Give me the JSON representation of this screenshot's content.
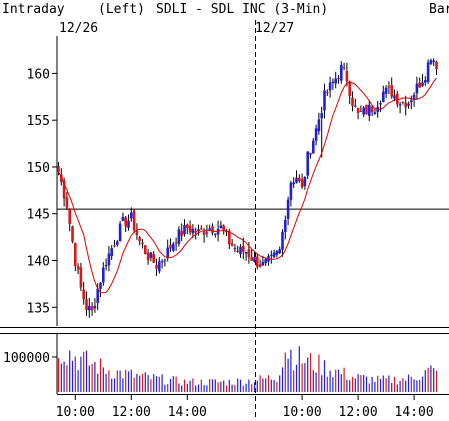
{
  "header": {
    "label_intraday": "Intraday",
    "label_left": "(Left)",
    "title": "SDLI - SDL INC  (3-Min)",
    "label_bar": "Bar",
    "date_labels": [
      "12/26",
      "12/27"
    ]
  },
  "chart_data": {
    "type": "candlestick",
    "title": "SDLI - SDL INC  (3-Min)",
    "interval": "3-Min",
    "days": [
      "12/26",
      "12/27"
    ],
    "price_axis": {
      "ticks": [
        135,
        140,
        145,
        150,
        155,
        160
      ],
      "range": [
        133,
        164
      ]
    },
    "volume_axis": {
      "ticks": [
        100000
      ],
      "tick_labels": [
        "100000"
      ],
      "range": [
        0,
        160000
      ]
    },
    "time_axis": {
      "tick_labels": [
        "10:00",
        "12:00",
        "14:00",
        "10:00",
        "12:00",
        "14:00"
      ]
    },
    "reference_line": 145.5,
    "moving_average": "red",
    "colors": {
      "up": "#2020d8",
      "down": "#d81818",
      "ma": "#e00000",
      "wick": "#000000"
    },
    "price_path": [
      [
        0,
        149.5
      ],
      [
        3,
        146
      ],
      [
        6,
        140
      ],
      [
        8,
        137
      ],
      [
        10,
        135
      ],
      [
        12,
        134.5
      ],
      [
        14,
        137
      ],
      [
        17,
        140
      ],
      [
        20,
        142
      ],
      [
        23,
        144
      ],
      [
        26,
        144.5
      ],
      [
        29,
        142
      ],
      [
        32,
        140.5
      ],
      [
        35,
        139.5
      ],
      [
        38,
        140.5
      ],
      [
        42,
        142.5
      ],
      [
        46,
        143.5
      ],
      [
        50,
        143
      ],
      [
        54,
        143.5
      ],
      [
        58,
        143.5
      ],
      [
        61,
        142
      ],
      [
        64,
        141
      ],
      [
        67,
        141
      ],
      [
        70,
        140
      ],
      [
        73,
        139.5
      ],
      [
        76,
        140
      ],
      [
        79,
        141
      ],
      [
        81,
        145
      ],
      [
        83,
        148.5
      ],
      [
        85,
        149
      ],
      [
        87,
        147.5
      ],
      [
        89,
        151
      ],
      [
        92,
        154
      ],
      [
        95,
        157.5
      ],
      [
        98,
        159
      ],
      [
        101,
        160.5
      ],
      [
        103,
        159.5
      ],
      [
        105,
        157
      ],
      [
        107,
        155.5
      ],
      [
        110,
        156
      ],
      [
        113,
        156.5
      ],
      [
        116,
        158
      ],
      [
        119,
        158
      ],
      [
        122,
        157
      ],
      [
        125,
        157
      ],
      [
        128,
        158.5
      ],
      [
        131,
        160
      ],
      [
        133,
        162
      ],
      [
        135,
        161
      ]
    ],
    "volume_profile": [
      [
        0,
        140000
      ],
      [
        5,
        110000
      ],
      [
        10,
        90000
      ],
      [
        20,
        60000
      ],
      [
        30,
        45000
      ],
      [
        45,
        30000
      ],
      [
        60,
        30000
      ],
      [
        70,
        35000
      ],
      [
        78,
        45000
      ],
      [
        81,
        130000
      ],
      [
        86,
        100000
      ],
      [
        95,
        75000
      ],
      [
        105,
        45000
      ],
      [
        115,
        35000
      ],
      [
        125,
        40000
      ],
      [
        133,
        65000
      ],
      [
        135,
        55000
      ]
    ]
  }
}
